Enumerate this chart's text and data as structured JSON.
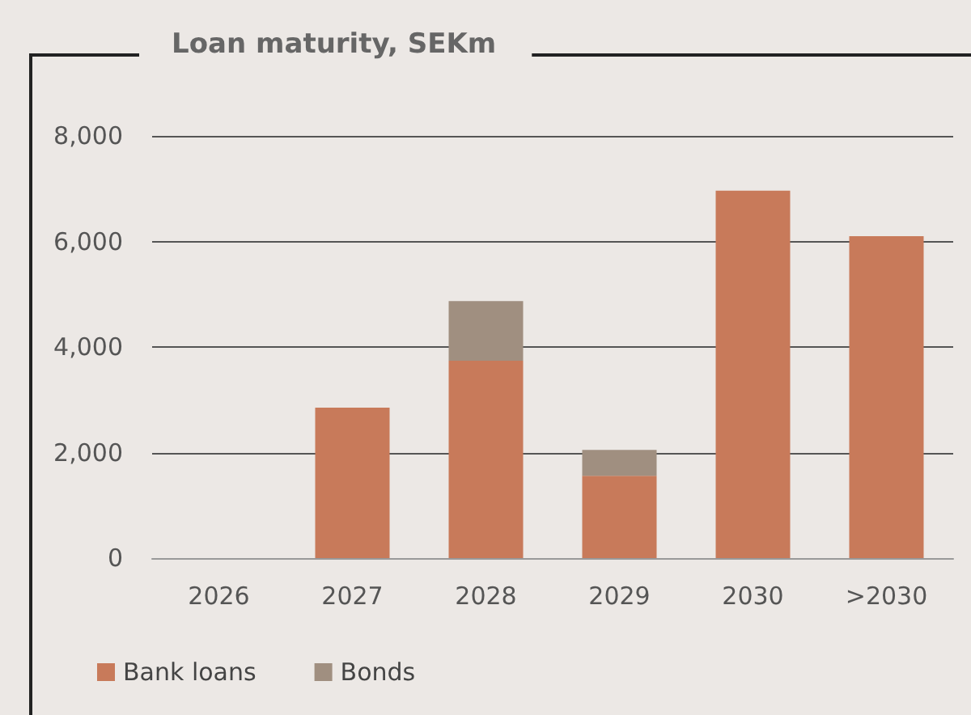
{
  "chart_data": {
    "type": "bar",
    "title": "Loan maturity, SEKm",
    "categories": [
      "2026",
      "2027",
      "2028",
      "2029",
      "2030",
      ">2030"
    ],
    "series": [
      {
        "name": "Bank loans",
        "color": "#c87a5a",
        "values": [
          0,
          2850,
          3740,
          1560,
          6960,
          6100
        ]
      },
      {
        "name": "Bonds",
        "color": "#a08f80",
        "values": [
          0,
          0,
          1130,
          490,
          0,
          0
        ]
      }
    ],
    "stacked": true,
    "ylim": [
      0,
      8000
    ],
    "yticks": [
      0,
      {
        "value": 2000,
        "label": "2,000"
      },
      {
        "value": 4000,
        "label": "4,000"
      },
      {
        "value": 6000,
        "label": "6,000"
      },
      {
        "value": 8000,
        "label": "8,000"
      }
    ],
    "grid": "y",
    "legend": "bottom left"
  }
}
